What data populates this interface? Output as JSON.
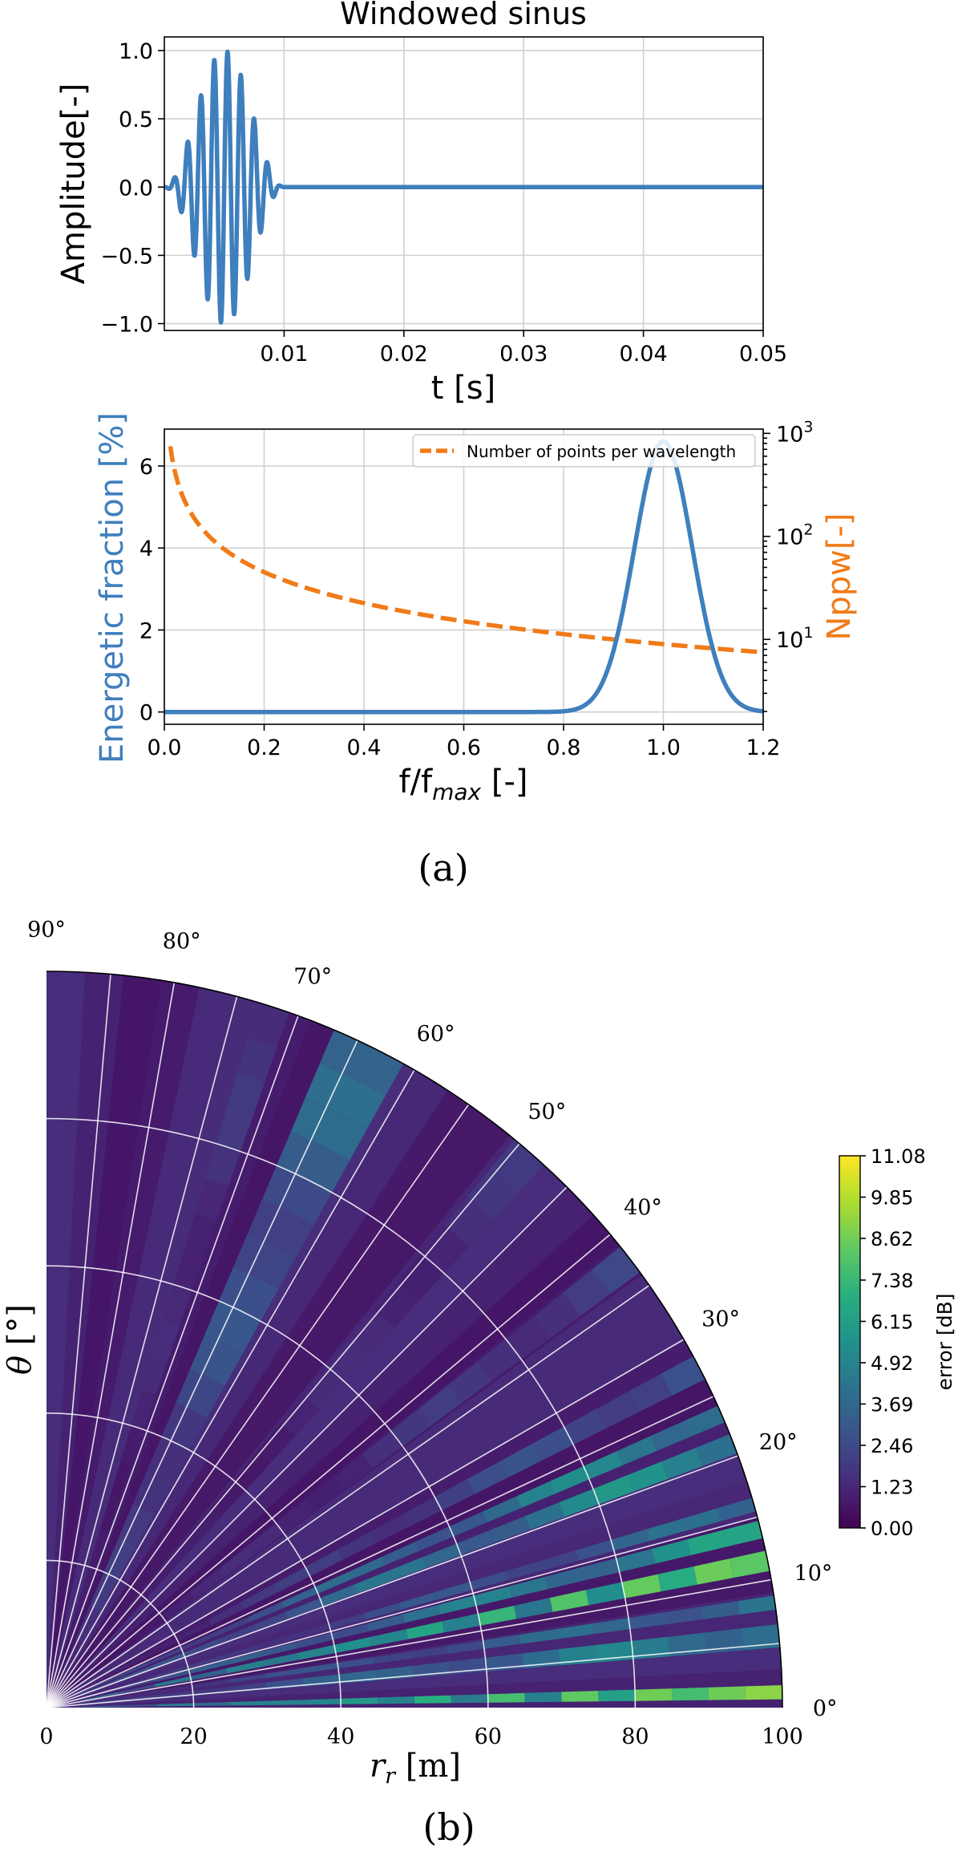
{
  "colors": {
    "signal": "#3f7fbd",
    "npw": "#f07b18",
    "viridis_low": "#440154",
    "viridis_high": "#fde725"
  },
  "panel_a_label": "(a)",
  "panel_b_label": "(b)",
  "chart_data": [
    {
      "type": "line",
      "title": "Windowed sinus",
      "xlabel": "t [s]",
      "ylabel": "Amplitude[-]",
      "xlim": [
        0.0,
        0.05
      ],
      "ylim": [
        -1.05,
        1.1
      ],
      "xticks": [
        0.01,
        0.02,
        0.03,
        0.04,
        0.05
      ],
      "xtick_labels": [
        "0.01",
        "0.02",
        "0.03",
        "0.04",
        "0.05"
      ],
      "yticks": [
        1.0,
        0.5,
        0.0,
        -0.5,
        -1.0
      ],
      "ytick_labels": [
        "1.0",
        "0.5",
        "0.0",
        "−0.5",
        "−1.0"
      ],
      "grid": true,
      "series": [
        {
          "name": "windowed sinus",
          "description": "sine burst of 9 cycles at f = 900 Hz under a Hann window, from t = 0 to 0.01 s, zero afterwards",
          "frequency_hz": 900,
          "window_end_s": 0.01,
          "peak_amplitude": 1.0
        }
      ]
    },
    {
      "type": "line",
      "xlabel": "f/fmax [-]",
      "xlabel_main": "f/f",
      "xlabel_sub": "max",
      "xlabel_tail": " [-]",
      "ylabel": "Energetic fraction [%]",
      "ylabel_right": "Nppw[-]",
      "xlim": [
        0.0,
        1.2
      ],
      "ylim": [
        -0.3,
        6.9
      ],
      "ylim_right_log": [
        1.5,
        1100
      ],
      "xticks": [
        0.0,
        0.2,
        0.4,
        0.6,
        0.8,
        1.0,
        1.2
      ],
      "xtick_labels": [
        "0.0",
        "0.2",
        "0.4",
        "0.6",
        "0.8",
        "1.0",
        "1.2"
      ],
      "yticks": [
        0,
        2,
        4,
        6
      ],
      "ytick_labels": [
        "0",
        "2",
        "4",
        "6"
      ],
      "yticks_right": [
        10,
        100,
        1000
      ],
      "yticks_right_labels": [
        {
          "base": "10",
          "exp": "1"
        },
        {
          "base": "10",
          "exp": "2"
        },
        {
          "base": "10",
          "exp": "3"
        }
      ],
      "grid": true,
      "legend": {
        "position": "top-right",
        "entries": [
          "Number of points per wavelength"
        ]
      },
      "series": [
        {
          "name": "Energetic fraction",
          "axis": "left",
          "description": "zero up to about 0.82, Gaussian-shaped peak centred at 1.0 reaching about 6.6 %, back to zero near 1.18",
          "peak_x": 1.0,
          "peak_y": 6.6,
          "width_sigma": 0.058
        },
        {
          "name": "Number of points per wavelength",
          "axis": "right",
          "style": "dashed",
          "x": [
            0.01,
            0.02,
            0.05,
            0.1,
            0.2,
            0.4,
            0.6,
            0.8,
            1.0,
            1.2
          ],
          "values": [
            900,
            450,
            180,
            90,
            45,
            22.5,
            15,
            11.25,
            9,
            7.5
          ]
        }
      ]
    },
    {
      "type": "heatmap",
      "projection": "polar quarter-disc",
      "xlabel": "r_r [m]",
      "xlabel_main": "r",
      "xlabel_sub": "r",
      "xlabel_tail": " [m]",
      "ylabel": "θ [°]",
      "ylabel_main": "θ",
      "ylabel_tail": " [°]",
      "r_range": [
        0,
        100
      ],
      "theta_range_deg": [
        0,
        90
      ],
      "r_ticks": [
        0,
        20,
        40,
        60,
        80,
        100
      ],
      "r_tick_labels": [
        "0",
        "20",
        "40",
        "60",
        "80",
        "100"
      ],
      "theta_ticks": [
        0,
        10,
        20,
        30,
        40,
        50,
        60,
        70,
        80,
        90
      ],
      "theta_tick_labels": [
        "0°",
        "10°",
        "20°",
        "30°",
        "40°",
        "50°",
        "60°",
        "70°",
        "80°",
        "90°"
      ],
      "colormap": "viridis",
      "colorbar": {
        "label": "error [dB]",
        "range": [
          0.0,
          11.08
        ],
        "ticks": [
          11.08,
          9.85,
          8.62,
          7.38,
          6.15,
          4.92,
          3.69,
          2.46,
          1.23,
          0.0
        ],
        "tick_labels": [
          "11.08",
          "9.85",
          "8.62",
          "7.38",
          "6.15",
          "4.92",
          "3.69",
          "2.46",
          "1.23",
          "0.00"
        ]
      },
      "error_bands": [
        {
          "theta_deg": 1.2,
          "width_deg": 1.1,
          "max_db": 10.5,
          "streaky": true
        },
        {
          "theta_deg": 5.6,
          "width_deg": 1.8,
          "max_db": 6.2,
          "streaky": false
        },
        {
          "theta_deg": 8.2,
          "width_deg": 1.1,
          "max_db": 5.2,
          "streaky": false
        },
        {
          "theta_deg": 11.5,
          "width_deg": 1.6,
          "max_db": 10.0,
          "streaky": true
        },
        {
          "theta_deg": 14.0,
          "width_deg": 1.4,
          "max_db": 7.0,
          "streaky": false
        },
        {
          "theta_deg": 16.0,
          "width_deg": 1.1,
          "max_db": 4.6,
          "streaky": false
        },
        {
          "theta_deg": 21.0,
          "width_deg": 1.6,
          "max_db": 6.8,
          "streaky": false
        },
        {
          "theta_deg": 23.5,
          "width_deg": 1.4,
          "max_db": 6.5,
          "streaky": false
        },
        {
          "theta_deg": 27.5,
          "width_deg": 2.0,
          "max_db": 3.6,
          "streaky": false
        },
        {
          "theta_deg": 37.5,
          "width_deg": 2.5,
          "max_db": 2.6,
          "streaky": false
        },
        {
          "theta_deg": 49.0,
          "width_deg": 3.0,
          "max_db": 2.0,
          "streaky": false
        },
        {
          "theta_deg": 64.0,
          "width_deg": 6.0,
          "max_db": 4.4,
          "streaky": false
        },
        {
          "theta_deg": 72.0,
          "width_deg": 2.5,
          "max_db": 2.2,
          "streaky": false
        }
      ]
    }
  ]
}
